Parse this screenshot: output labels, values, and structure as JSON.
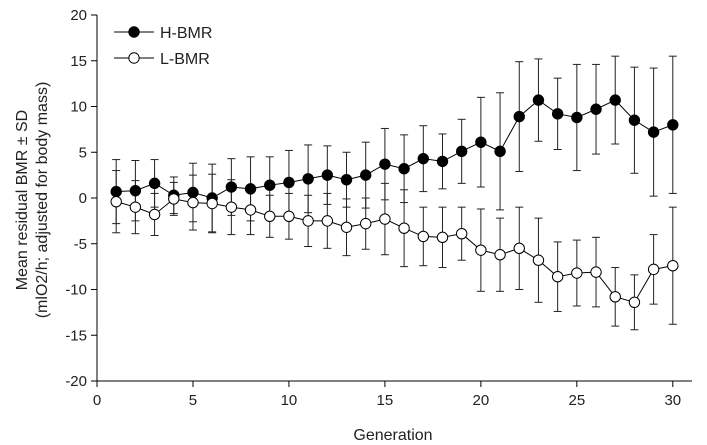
{
  "chart_data": {
    "type": "line",
    "xlabel": "Generation",
    "ylabel_line1": "Mean residual BMR ± SD",
    "ylabel_line2": "(mlO2/h; adjusted for body mass)",
    "xlim": [
      0,
      31
    ],
    "ylim": [
      -20,
      20
    ],
    "xticks": [
      0,
      5,
      10,
      15,
      20,
      25,
      30
    ],
    "yticks": [
      -20,
      -15,
      -10,
      -5,
      0,
      5,
      10,
      15,
      20
    ],
    "grid": false,
    "legend_position": "top-left",
    "x": [
      1,
      2,
      3,
      4,
      5,
      6,
      7,
      8,
      9,
      10,
      11,
      12,
      13,
      14,
      15,
      16,
      17,
      18,
      19,
      20,
      21,
      22,
      23,
      24,
      25,
      26,
      27,
      28,
      29,
      30
    ],
    "series": [
      {
        "name": "H-BMR",
        "marker": "filled-circle",
        "color": "#000000",
        "values": [
          0.7,
          0.8,
          1.6,
          0.3,
          0.6,
          0.0,
          1.2,
          1.0,
          1.4,
          1.7,
          2.1,
          2.5,
          2.0,
          2.5,
          3.7,
          3.2,
          4.3,
          4.0,
          5.1,
          6.1,
          5.1,
          8.9,
          10.7,
          9.2,
          8.8,
          9.7,
          10.7,
          8.5,
          7.2,
          8.0
        ],
        "sd": [
          3.5,
          3.3,
          2.6,
          2.0,
          3.2,
          3.7,
          3.1,
          3.5,
          3.1,
          3.5,
          3.7,
          3.2,
          3.0,
          3.6,
          3.9,
          3.7,
          3.6,
          3.0,
          3.5,
          4.9,
          6.4,
          6.0,
          4.5,
          3.9,
          5.8,
          4.9,
          4.8,
          5.8,
          7.0,
          7.5
        ]
      },
      {
        "name": "L-BMR",
        "marker": "open-circle",
        "color": "#000000",
        "values": [
          -0.4,
          -1.0,
          -1.8,
          -0.1,
          -0.5,
          -0.6,
          -1.0,
          -1.3,
          -2.0,
          -2.0,
          -2.5,
          -2.5,
          -3.2,
          -2.8,
          -2.3,
          -3.3,
          -4.2,
          -4.3,
          -3.9,
          -5.7,
          -6.2,
          -5.5,
          -6.8,
          -8.6,
          -8.2,
          -8.1,
          -10.8,
          -11.4,
          -7.8,
          -7.4
        ],
        "sd": [
          3.4,
          2.9,
          2.3,
          1.8,
          3.0,
          3.2,
          3.0,
          2.7,
          2.3,
          2.5,
          2.8,
          3.0,
          3.1,
          2.8,
          3.9,
          4.2,
          3.2,
          3.3,
          2.9,
          4.5,
          4.0,
          4.5,
          4.6,
          3.8,
          3.6,
          3.8,
          3.2,
          3.0,
          3.8,
          6.4
        ]
      }
    ]
  }
}
